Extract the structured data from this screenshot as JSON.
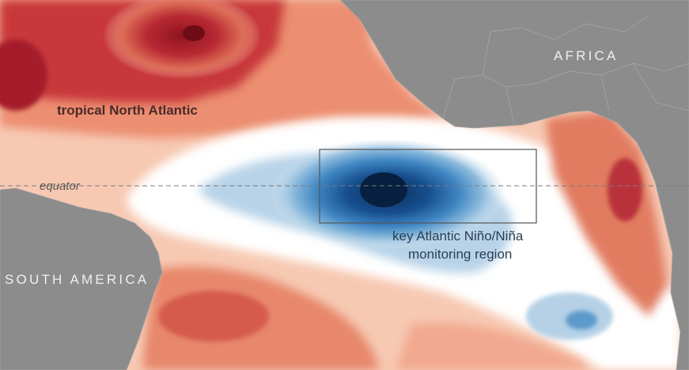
{
  "map": {
    "labels": {
      "north_atlantic": "tropical North Atlantic",
      "africa": "AFRICA",
      "south_america": "SOUTH AMERICA",
      "equator": "equator",
      "region_line1": "key Atlantic Niño/Niña",
      "region_line2": "monitoring region"
    },
    "colors": {
      "land": "#8c8c8c",
      "warm_strong": "#a81c2a",
      "warm_mid": "#e0745b",
      "warm_light": "#f6c0a8",
      "neutral": "#ffffff",
      "cool_light": "#c9ddeb",
      "cool_mid": "#4d8ec4",
      "cool_strong": "#0a2e5c"
    }
  }
}
